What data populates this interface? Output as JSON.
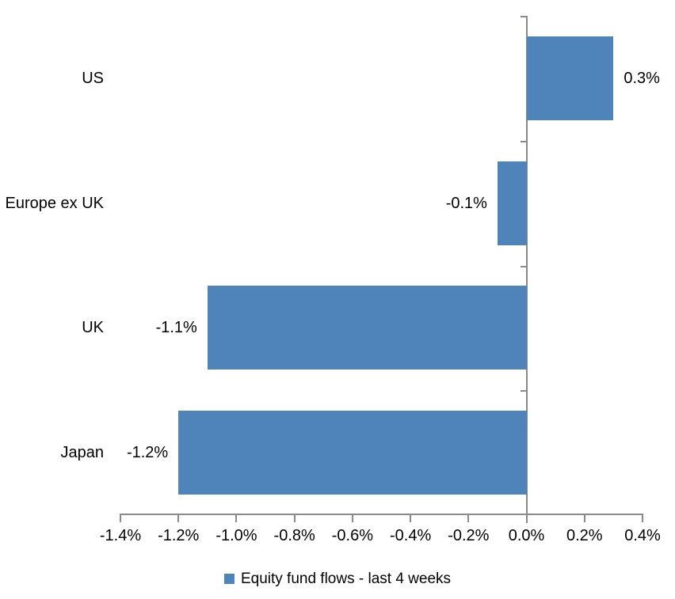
{
  "chart_data": {
    "type": "bar",
    "orientation": "horizontal",
    "title": "",
    "xlabel": "",
    "ylabel": "",
    "categories": [
      "US",
      "Europe ex UK",
      "UK",
      "Japan"
    ],
    "values": [
      0.3,
      -0.1,
      -1.1,
      -1.2
    ],
    "value_labels": [
      "0.3%",
      "-0.1%",
      "-1.1%",
      "-1.2%"
    ],
    "series_name": "Equity fund flows - last 4 weeks",
    "x_ticks": [
      "-1.4%",
      "-1.2%",
      "-1.0%",
      "-0.8%",
      "-0.6%",
      "-0.4%",
      "-0.2%",
      "0.0%",
      "0.2%",
      "0.4%"
    ],
    "x_tick_values": [
      -1.4,
      -1.2,
      -1.0,
      -0.8,
      -0.6,
      -0.4,
      -0.2,
      0.0,
      0.2,
      0.4
    ],
    "xlim": [
      -1.4,
      0.4
    ],
    "grid": false,
    "legend_position": "bottom",
    "bar_color": "#4e84ba",
    "axis_color": "#8a8a8a",
    "text_color": "#000000"
  }
}
